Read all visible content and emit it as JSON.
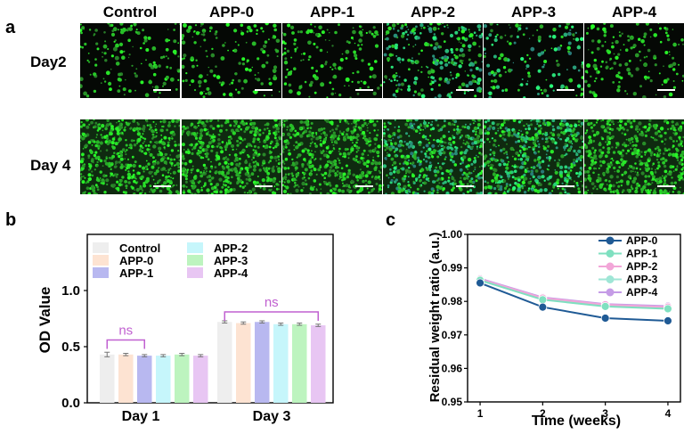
{
  "panel_a": {
    "letter": "a",
    "columns": [
      "Control",
      "APP-0",
      "APP-1",
      "APP-2",
      "APP-3",
      "APP-4"
    ],
    "rows": [
      "Day2",
      "Day 4"
    ]
  },
  "panel_b": {
    "letter": "b"
  },
  "panel_c": {
    "letter": "c"
  },
  "colors": {
    "Control": "#eeeeee",
    "APP-0": "#fde3d2",
    "APP-1": "#b8b8f0",
    "APP-2": "#c6f6fb",
    "APP-3": "#bdf4bf",
    "APP-4": "#e8c6f3",
    "line_APP-0": "#1f5a95",
    "line_APP-1": "#7fe0c0",
    "line_APP-2": "#f2a6d8",
    "line_APP-3": "#9fe6d6",
    "line_APP-4": "#c59ce6",
    "ns": "#c060d0"
  },
  "chart_data": [
    {
      "type": "bar",
      "ylabel": "OD Value",
      "ylim": [
        0.0,
        1.5
      ],
      "yticks": [
        "0.0",
        "0.5",
        "1.0"
      ],
      "categories": [
        "Day 1",
        "Day 3"
      ],
      "series": [
        {
          "name": "Control",
          "values": [
            0.43,
            0.72
          ],
          "errors": [
            0.02,
            0.01
          ]
        },
        {
          "name": "APP-0",
          "values": [
            0.43,
            0.71
          ],
          "errors": [
            0.01,
            0.01
          ]
        },
        {
          "name": "APP-1",
          "values": [
            0.42,
            0.72
          ],
          "errors": [
            0.01,
            0.01
          ]
        },
        {
          "name": "APP-2",
          "values": [
            0.42,
            0.7
          ],
          "errors": [
            0.01,
            0.01
          ]
        },
        {
          "name": "APP-3",
          "values": [
            0.43,
            0.7
          ],
          "errors": [
            0.01,
            0.01
          ]
        },
        {
          "name": "APP-4",
          "values": [
            0.42,
            0.69
          ],
          "errors": [
            0.01,
            0.01
          ]
        }
      ],
      "annotations": [
        "ns",
        "ns"
      ],
      "legend": "top-left, two columns"
    },
    {
      "type": "line",
      "xlabel": "Time (weeks)",
      "ylabel": "Residual weight ratio (a.u.)",
      "x": [
        1,
        2,
        3,
        4
      ],
      "xticks": [
        "1",
        "2",
        "3",
        "4"
      ],
      "ylim": [
        0.95,
        1.0
      ],
      "yticks": [
        "0.95",
        "0.96",
        "0.97",
        "0.98",
        "0.99",
        "1.00"
      ],
      "series": [
        {
          "name": "APP-0",
          "values": [
            0.9855,
            0.9783,
            0.975,
            0.9742
          ]
        },
        {
          "name": "APP-1",
          "values": [
            0.9863,
            0.9805,
            0.9785,
            0.9778
          ]
        },
        {
          "name": "APP-2",
          "values": [
            0.9866,
            0.981,
            0.979,
            0.9783
          ]
        },
        {
          "name": "APP-3",
          "values": [
            0.9863,
            0.9806,
            0.9786,
            0.9779
          ]
        },
        {
          "name": "APP-4",
          "values": [
            0.9868,
            0.9812,
            0.9792,
            0.9786
          ]
        }
      ],
      "legend": "top-right"
    }
  ]
}
